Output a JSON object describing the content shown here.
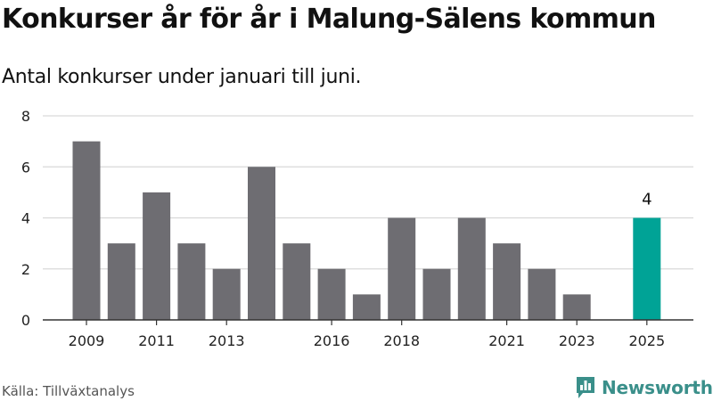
{
  "header": {
    "title": "Konkurser år för år i Malung-Sälens kommun",
    "subtitle": "Antal konkurser under januari till juni."
  },
  "footer": {
    "source": "Källa: Tillväxtanalys",
    "brand": "Newsworthy"
  },
  "colors": {
    "bar": "#6e6d72",
    "highlight": "#00a396",
    "grid": "#d9d9d9",
    "axis": "#333333",
    "brand": "#3a8f8a"
  },
  "chart_data": {
    "type": "bar",
    "categories": [
      "2009",
      "2010",
      "2011",
      "2012",
      "2013",
      "2014",
      "2015",
      "2016",
      "2017",
      "2018",
      "2019",
      "2020",
      "2021",
      "2022",
      "2023",
      "2024",
      "2025"
    ],
    "values": [
      7,
      3,
      5,
      3,
      2,
      6,
      3,
      2,
      1,
      4,
      2,
      4,
      3,
      2,
      1,
      0,
      4
    ],
    "x_tick_labels": [
      "2009",
      "2011",
      "2013",
      "2016",
      "2018",
      "2021",
      "2023",
      "2025"
    ],
    "y_ticks": [
      0,
      2,
      4,
      6,
      8
    ],
    "ylim": [
      0,
      8
    ],
    "grid": true,
    "highlight_category": "2025",
    "data_labels": [
      {
        "category": "2025",
        "text": "4"
      }
    ]
  }
}
